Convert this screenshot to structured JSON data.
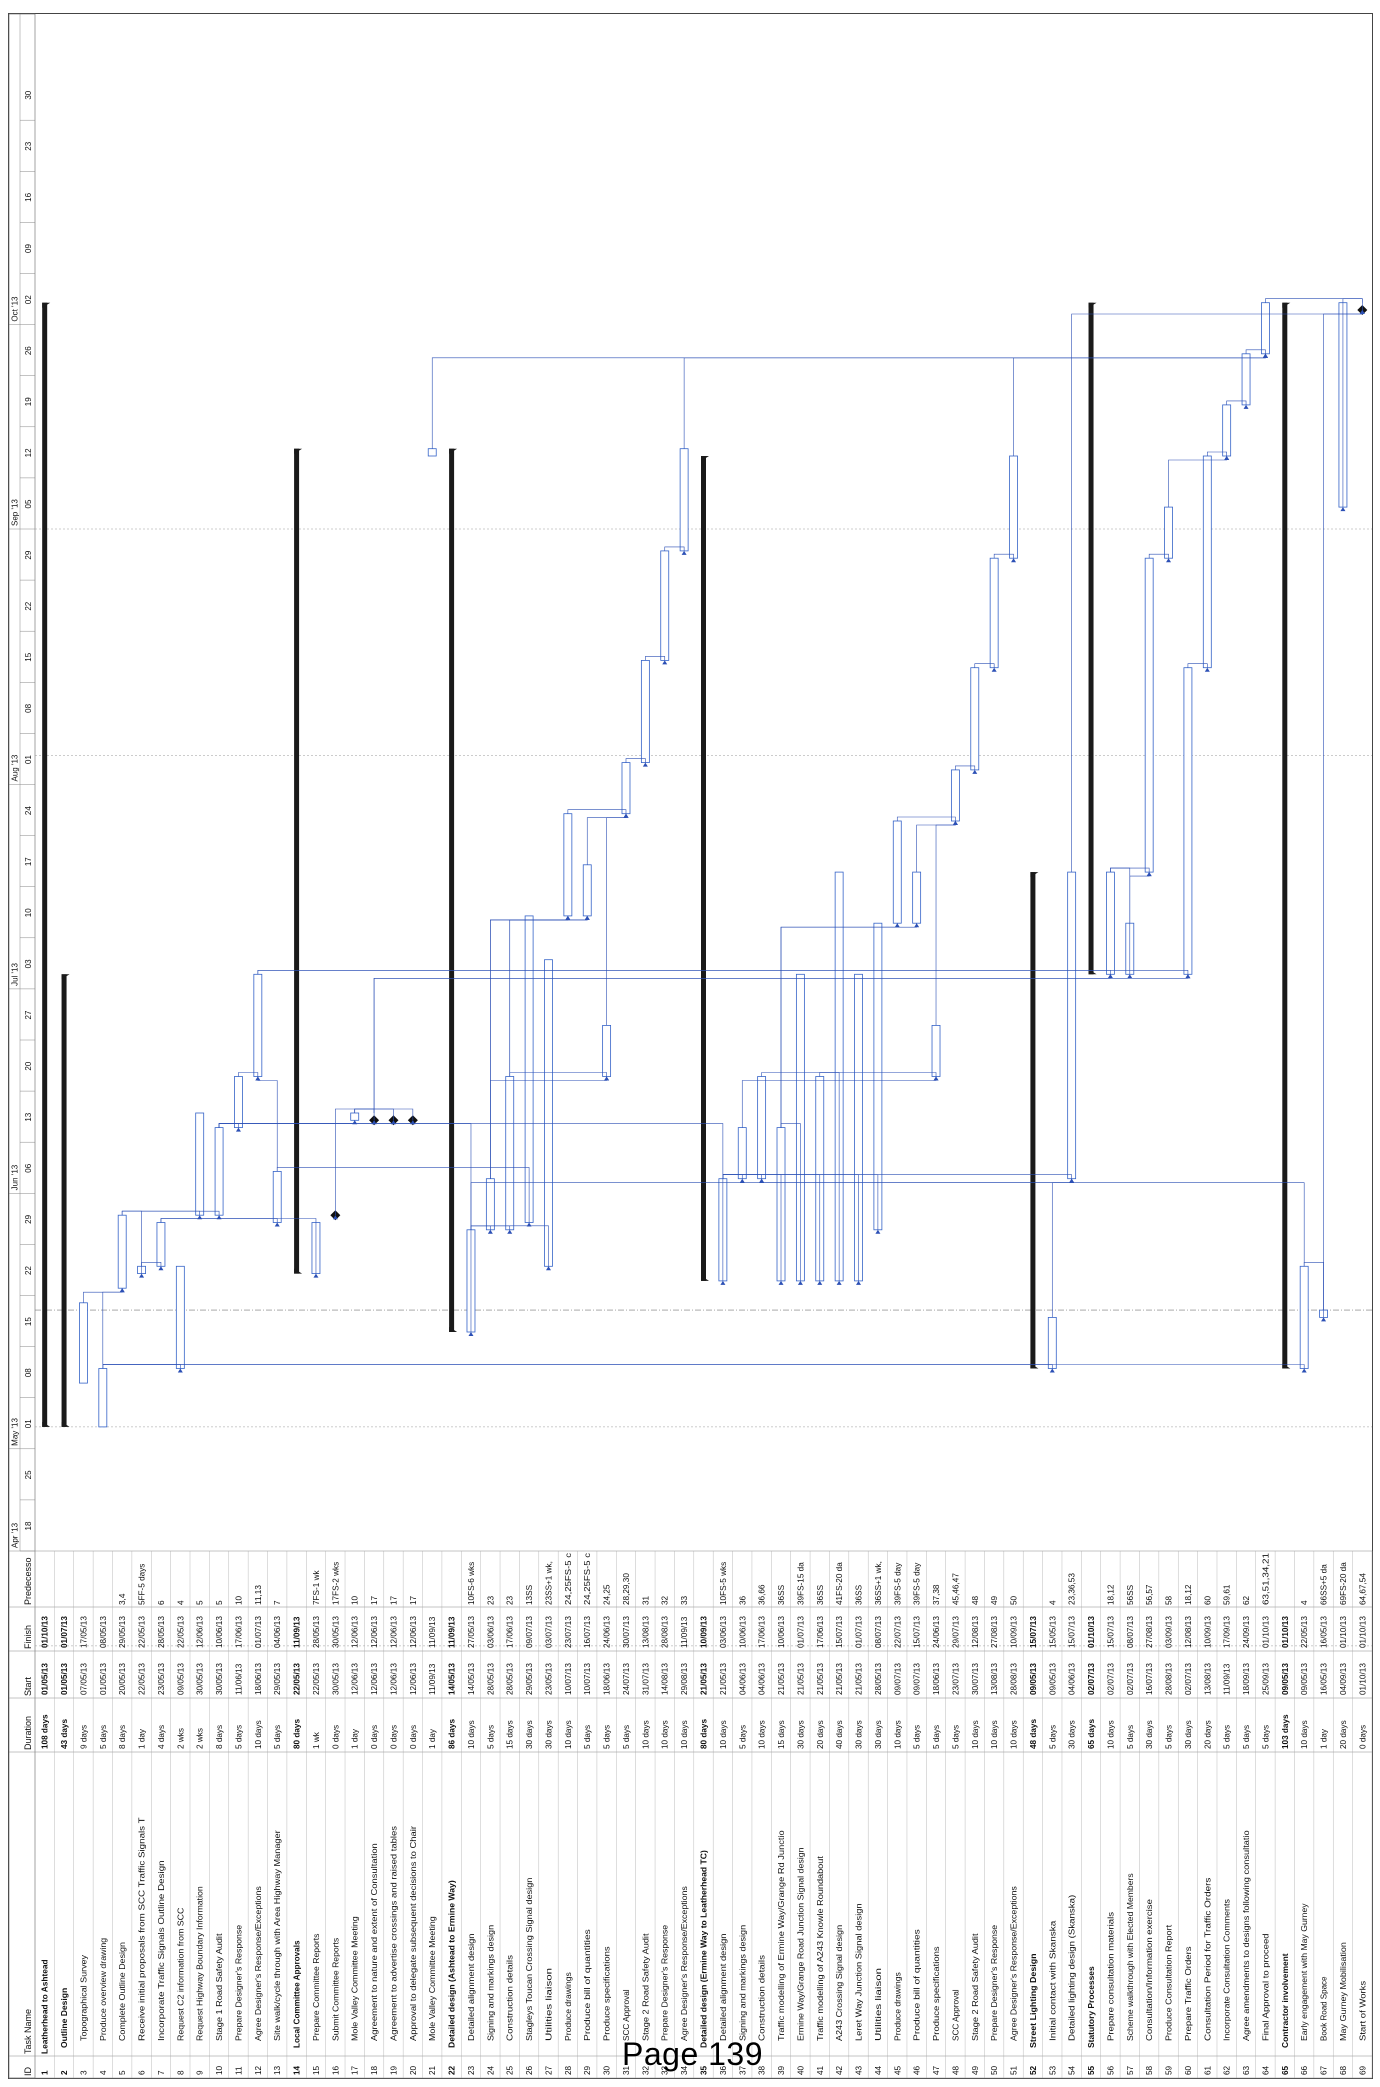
{
  "page": {
    "footer": "Page 139"
  },
  "columns": [
    "ID",
    "Task Name",
    "Duration",
    "Start",
    "Finish",
    "Predecesso"
  ],
  "timescale": {
    "months": [
      "Apr '13",
      "May '13",
      "Jun '13",
      "Jul '13",
      "Aug '13",
      "Sep '13",
      "Oct '13"
    ],
    "weeks": [
      "18",
      "25",
      "01",
      "08",
      "15",
      "22",
      "29",
      "06",
      "13",
      "20",
      "27",
      "03",
      "10",
      "17",
      "24",
      "01",
      "08",
      "15",
      "22",
      "29",
      "05",
      "12",
      "19",
      "26",
      "02",
      "09",
      "16",
      "23",
      "30"
    ]
  },
  "colors": {
    "bar": "#3563c8",
    "summary": "#1a1a1a",
    "link": "#2b4fb5",
    "grid": "#bbbbbb",
    "highlight": "#a9c3ea"
  },
  "chart_data": {
    "type": "gantt",
    "tasks": [
      {
        "id": "1",
        "name": "Leatherhead to Ashtead",
        "duration": "108 days",
        "start": "01/05/13",
        "finish": "01/10/13",
        "pred": "",
        "summary": true
      },
      {
        "id": "2",
        "name": "Outline Design",
        "duration": "43 days",
        "start": "01/05/13",
        "finish": "01/07/13",
        "pred": "",
        "summary": true
      },
      {
        "id": "3",
        "name": "Topographical Survey",
        "duration": "9 days",
        "start": "07/05/13",
        "finish": "17/05/13",
        "pred": ""
      },
      {
        "id": "4",
        "name": "Produce overview drawing",
        "duration": "5 days",
        "start": "01/05/13",
        "finish": "08/05/13",
        "pred": ""
      },
      {
        "id": "5",
        "name": "Complete Outline Design",
        "duration": "8 days",
        "start": "20/05/13",
        "finish": "29/05/13",
        "pred": "3,4"
      },
      {
        "id": "6",
        "name": "Receive initial proposals from SCC Traffic Signals T",
        "duration": "1 day",
        "start": "22/05/13",
        "finish": "22/05/13",
        "pred": "5FF-5 days"
      },
      {
        "id": "7",
        "name": "Incorporate Traffic Signals Outline Design",
        "duration": "4 days",
        "start": "23/05/13",
        "finish": "28/05/13",
        "pred": "6"
      },
      {
        "id": "8",
        "name": "Request C2 information from SCC",
        "duration": "2 wks",
        "start": "09/05/13",
        "finish": "22/05/13",
        "pred": "4"
      },
      {
        "id": "9",
        "name": "Request Highway Boundary Information",
        "duration": "2 wks",
        "start": "30/05/13",
        "finish": "12/06/13",
        "pred": "5"
      },
      {
        "id": "10",
        "name": "Stage 1 Road Safety Audit",
        "duration": "8 days",
        "start": "30/05/13",
        "finish": "10/06/13",
        "pred": "5"
      },
      {
        "id": "11",
        "name": "Prepare Designer's Response",
        "duration": "5 days",
        "start": "11/06/13",
        "finish": "17/06/13",
        "pred": "10"
      },
      {
        "id": "12",
        "name": "Agree Designer's Response/Exceptions",
        "duration": "10 days",
        "start": "18/06/13",
        "finish": "01/07/13",
        "pred": "11,13"
      },
      {
        "id": "13",
        "name": "Site walk/cycle through with Area Highway Manager",
        "duration": "5 days",
        "start": "29/05/13",
        "finish": "04/06/13",
        "pred": "7"
      },
      {
        "id": "14",
        "name": "Local Committee Approvals",
        "duration": "80 days",
        "start": "22/05/13",
        "finish": "11/09/13",
        "pred": "",
        "summary": true
      },
      {
        "id": "15",
        "name": "Prepare Committee Reports",
        "duration": "1 wk",
        "start": "22/05/13",
        "finish": "28/05/13",
        "pred": "7FS-1 wk"
      },
      {
        "id": "16",
        "name": "Submit Committee Reports",
        "duration": "0 days",
        "start": "30/05/13",
        "finish": "30/05/13",
        "pred": "17FS-2 wks"
      },
      {
        "id": "17",
        "name": "Mole Valley Committee Meeting",
        "duration": "1 day",
        "start": "12/06/13",
        "finish": "12/06/13",
        "pred": "10"
      },
      {
        "id": "18",
        "name": "Agreement to nature and extent of Consultation",
        "duration": "0 days",
        "start": "12/06/13",
        "finish": "12/06/13",
        "pred": "17"
      },
      {
        "id": "19",
        "name": "Agreement to advertise crossings and raised tables",
        "duration": "0 days",
        "start": "12/06/13",
        "finish": "12/06/13",
        "pred": "17"
      },
      {
        "id": "20",
        "name": "Approval to delegate subsequent decisions to Chair",
        "duration": "0 days",
        "start": "12/06/13",
        "finish": "12/06/13",
        "pred": "17"
      },
      {
        "id": "21",
        "name": "Mole Valley Committee Meeting",
        "duration": "1 day",
        "start": "11/09/13",
        "finish": "11/09/13",
        "pred": ""
      },
      {
        "id": "22",
        "name": "Detailed design (Ashtead to Ermine Way)",
        "duration": "86 days",
        "start": "14/05/13",
        "finish": "11/09/13",
        "pred": "",
        "summary": true
      },
      {
        "id": "23",
        "name": "Detailed alignment design",
        "duration": "10 days",
        "start": "14/05/13",
        "finish": "27/05/13",
        "pred": "10FS-6 wks"
      },
      {
        "id": "24",
        "name": "Signing and markings design",
        "duration": "5 days",
        "start": "28/05/13",
        "finish": "03/06/13",
        "pred": "23"
      },
      {
        "id": "25",
        "name": "Construction details",
        "duration": "15 days",
        "start": "28/05/13",
        "finish": "17/06/13",
        "pred": "23"
      },
      {
        "id": "26",
        "name": "Stagleys Toucan Crossing Signal design",
        "duration": "30 days",
        "start": "29/05/13",
        "finish": "09/07/13",
        "pred": "13SS"
      },
      {
        "id": "27",
        "name": "Utilities liaison",
        "duration": "30 days",
        "start": "23/05/13",
        "finish": "03/07/13",
        "pred": "23SS+1 wk,"
      },
      {
        "id": "28",
        "name": "Produce drawings",
        "duration": "10 days",
        "start": "10/07/13",
        "finish": "23/07/13",
        "pred": "24,25FS-5 c"
      },
      {
        "id": "29",
        "name": "Produce bill of quantities",
        "duration": "5 days",
        "start": "10/07/13",
        "finish": "16/07/13",
        "pred": "24,25FS-5 c"
      },
      {
        "id": "30",
        "name": "Produce specifications",
        "duration": "5 days",
        "start": "18/06/13",
        "finish": "24/06/13",
        "pred": "24,25"
      },
      {
        "id": "31",
        "name": "SCC Approval",
        "duration": "5 days",
        "start": "24/07/13",
        "finish": "30/07/13",
        "pred": "28,29,30"
      },
      {
        "id": "32",
        "name": "Stage 2 Road Safety Audit",
        "duration": "10 days",
        "start": "31/07/13",
        "finish": "13/08/13",
        "pred": "31"
      },
      {
        "id": "33",
        "name": "Prepare Designer's Response",
        "duration": "10 days",
        "start": "14/08/13",
        "finish": "28/08/13",
        "pred": "32"
      },
      {
        "id": "34",
        "name": "Agree Designer's Response/Exceptions",
        "duration": "10 days",
        "start": "29/08/13",
        "finish": "11/09/13",
        "pred": "33"
      },
      {
        "id": "35",
        "name": "Detailed design (Ermine Way to Leatherhead TC)",
        "duration": "80 days",
        "start": "21/05/13",
        "finish": "10/09/13",
        "pred": "",
        "summary": true
      },
      {
        "id": "36",
        "name": "Detailed alignment design",
        "duration": "10 days",
        "start": "21/05/13",
        "finish": "03/06/13",
        "pred": "10FS-5 wks"
      },
      {
        "id": "37",
        "name": "Signing and markings design",
        "duration": "5 days",
        "start": "04/06/13",
        "finish": "10/06/13",
        "pred": "36"
      },
      {
        "id": "38",
        "name": "Construction details",
        "duration": "10 days",
        "start": "04/06/13",
        "finish": "17/06/13",
        "pred": "36,66"
      },
      {
        "id": "39",
        "name": "Traffic modelling of Ermine Way/Grange Rd Junctio",
        "duration": "15 days",
        "start": "21/05/13",
        "finish": "10/06/13",
        "pred": "36SS"
      },
      {
        "id": "40",
        "name": "Ermine Way/Grange Road Junction Signal design",
        "duration": "30 days",
        "start": "21/05/13",
        "finish": "01/07/13",
        "pred": "39FS-15 da"
      },
      {
        "id": "41",
        "name": "Traffic modelling of A243 Knowle Roundabout",
        "duration": "20 days",
        "start": "21/05/13",
        "finish": "17/06/13",
        "pred": "36SS"
      },
      {
        "id": "42",
        "name": "A243 Crossing Signal design",
        "duration": "40 days",
        "start": "21/05/13",
        "finish": "15/07/13",
        "pred": "41FS-20 da"
      },
      {
        "id": "43",
        "name": "Leret Way Junction Signal design",
        "duration": "30 days",
        "start": "21/05/13",
        "finish": "01/07/13",
        "pred": "36SS"
      },
      {
        "id": "44",
        "name": "Utilities liaison",
        "duration": "30 days",
        "start": "28/05/13",
        "finish": "08/07/13",
        "pred": "36SS+1 wk,"
      },
      {
        "id": "45",
        "name": "Produce drawings",
        "duration": "10 days",
        "start": "09/07/13",
        "finish": "22/07/13",
        "pred": "39FS-5 day"
      },
      {
        "id": "46",
        "name": "Produce bill of quantities",
        "duration": "5 days",
        "start": "09/07/13",
        "finish": "15/07/13",
        "pred": "39FS-5 day"
      },
      {
        "id": "47",
        "name": "Produce specifications",
        "duration": "5 days",
        "start": "18/06/13",
        "finish": "24/06/13",
        "pred": "37,38"
      },
      {
        "id": "48",
        "name": "SCC Approval",
        "duration": "5 days",
        "start": "23/07/13",
        "finish": "29/07/13",
        "pred": "45,46,47"
      },
      {
        "id": "49",
        "name": "Stage 2 Road Safety Audit",
        "duration": "10 days",
        "start": "30/07/13",
        "finish": "12/08/13",
        "pred": "48"
      },
      {
        "id": "50",
        "name": "Prepare Designer's Response",
        "duration": "10 days",
        "start": "13/08/13",
        "finish": "27/08/13",
        "pred": "49"
      },
      {
        "id": "51",
        "name": "Agree Designer's Response/Exceptions",
        "duration": "10 days",
        "start": "28/08/13",
        "finish": "10/09/13",
        "pred": "50"
      },
      {
        "id": "52",
        "name": "Street Lighting Design",
        "duration": "48 days",
        "start": "09/05/13",
        "finish": "15/07/13",
        "pred": "",
        "summary": true
      },
      {
        "id": "53",
        "name": "Initial contact with Skanska",
        "duration": "5 days",
        "start": "09/05/13",
        "finish": "15/05/13",
        "pred": "4"
      },
      {
        "id": "54",
        "name": "Detailed lighting design (Skanska)",
        "duration": "30 days",
        "start": "04/06/13",
        "finish": "15/07/13",
        "pred": "23,36,53"
      },
      {
        "id": "55",
        "name": "Statutory Processes",
        "duration": "65 days",
        "start": "02/07/13",
        "finish": "01/10/13",
        "pred": "",
        "summary": true
      },
      {
        "id": "56",
        "name": "Prepare consultation materials",
        "duration": "10 days",
        "start": "02/07/13",
        "finish": "15/07/13",
        "pred": "18,12"
      },
      {
        "id": "57",
        "name": "Scheme walkthrough with Elected Members",
        "duration": "5 days",
        "start": "02/07/13",
        "finish": "08/07/13",
        "pred": "56SS"
      },
      {
        "id": "58",
        "name": "Consultation/Information exercise",
        "duration": "30 days",
        "start": "16/07/13",
        "finish": "27/08/13",
        "pred": "56,57"
      },
      {
        "id": "59",
        "name": "Produce Consultation Report",
        "duration": "5 days",
        "start": "28/08/13",
        "finish": "03/09/13",
        "pred": "58"
      },
      {
        "id": "60",
        "name": "Prepare Traffic Orders",
        "duration": "30 days",
        "start": "02/07/13",
        "finish": "12/08/13",
        "pred": "18,12"
      },
      {
        "id": "61",
        "name": "Consultation Period for Traffic Orders",
        "duration": "20 days",
        "start": "13/08/13",
        "finish": "10/09/13",
        "pred": "60"
      },
      {
        "id": "62",
        "name": "Incorporate Consultation Comments",
        "duration": "5 days",
        "start": "11/09/13",
        "finish": "17/09/13",
        "pred": "59,61"
      },
      {
        "id": "63",
        "name": "Agree amendments to designs following consultatio",
        "duration": "5 days",
        "start": "18/09/13",
        "finish": "24/09/13",
        "pred": "62"
      },
      {
        "id": "64",
        "name": "Final Approval to proceed",
        "duration": "5 days",
        "start": "25/09/13",
        "finish": "01/10/13",
        "pred": "63,51,34,21"
      },
      {
        "id": "65",
        "name": "Contractor involvement",
        "duration": "103 days",
        "start": "09/05/13",
        "finish": "01/10/13",
        "pred": "",
        "summary": true
      },
      {
        "id": "66",
        "name": "Early engagement with May Gurney",
        "duration": "10 days",
        "start": "09/05/13",
        "finish": "22/05/13",
        "pred": "4"
      },
      {
        "id": "67",
        "name": "Book Road Space",
        "duration": "1 day",
        "start": "16/05/13",
        "finish": "16/05/13",
        "pred": "66SS+5 da"
      },
      {
        "id": "68",
        "name": "May Gurney Mobilisation",
        "duration": "20 days",
        "start": "04/09/13",
        "finish": "01/10/13",
        "pred": "69FS-20 da"
      },
      {
        "id": "69",
        "name": "Start of Works",
        "duration": "0 days",
        "start": "01/10/13",
        "finish": "01/10/13",
        "pred": "64,67,54"
      }
    ]
  }
}
